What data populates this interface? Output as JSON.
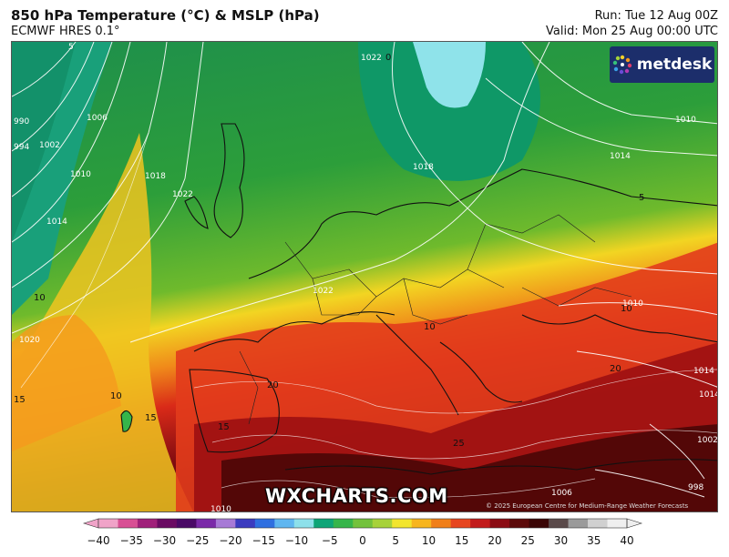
{
  "header": {
    "title": "850 hPa Temperature (°C) & MSLP (hPa)",
    "model": "ECMWF HRES 0.1°",
    "run": "Run: Tue 12 Aug 00Z",
    "valid": "Valid: Mon 25 Aug 00:00 UTC"
  },
  "brand": {
    "logo_text": "metdesk",
    "logo_icon": "sparkle-dots-icon",
    "logo_bg": "#1c2e6b"
  },
  "watermark": "WXCHARTS.COM",
  "copyright": "© 2025 European Centre for Medium-Range Weather Forecasts",
  "isobar_labels": [
    "5",
    "990",
    "994",
    "1002",
    "1006",
    "1010",
    "1014",
    "1018",
    "1022",
    "1022",
    "1018",
    "1010",
    "1014",
    "1022",
    "1010",
    "1014",
    "1014",
    "1020",
    "998",
    "1002",
    "1006",
    "1010"
  ],
  "temperature_labels": [
    "10",
    "15",
    "10",
    "15",
    "10",
    "15",
    "20",
    "20",
    "25",
    "5",
    "10",
    "0",
    "5"
  ],
  "legend": {
    "ticks": [
      "−40",
      "−35",
      "−30",
      "−25",
      "−20",
      "−15",
      "−10",
      "−5",
      "0",
      "5",
      "10",
      "15",
      "20",
      "25",
      "30",
      "35",
      "40"
    ],
    "colors": [
      "#f0a3c8",
      "#d84f94",
      "#a0207a",
      "#6a0b63",
      "#4a0a66",
      "#7a2aa8",
      "#a77ad6",
      "#3b3bbf",
      "#2f6fe0",
      "#5fb6f0",
      "#8de0ea",
      "#0ea577",
      "#36b54a",
      "#73c23c",
      "#a7d23a",
      "#f2e52e",
      "#f7b51e",
      "#f07f19",
      "#e6451f",
      "#c21b1b",
      "#8b0c14",
      "#5c0a0a",
      "#3a0505",
      "#5a4a4a",
      "#9a9a9a",
      "#d0d0d0",
      "#efefef"
    ]
  },
  "colors": {
    "land_border": "#111111",
    "isobar": "#ffffff"
  }
}
